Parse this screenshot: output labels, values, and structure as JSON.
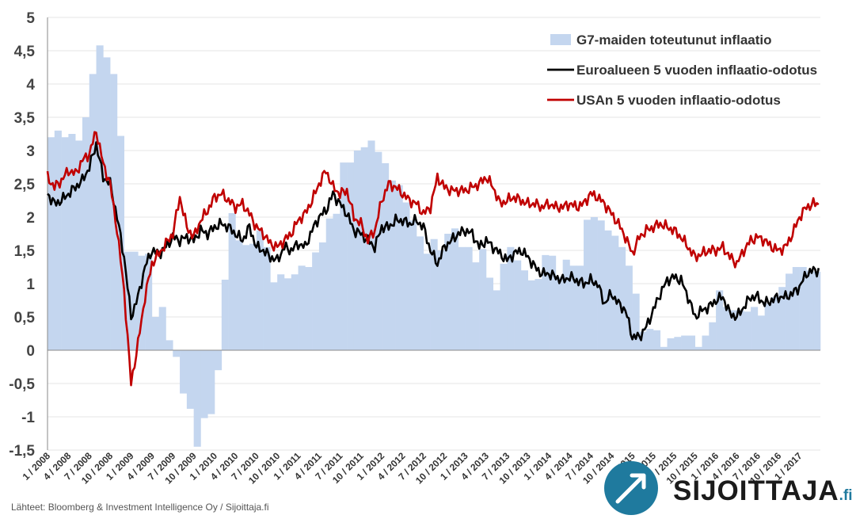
{
  "chart_data": {
    "type": "bar+line",
    "title": "",
    "xlabel": "",
    "ylabel": "",
    "ylim": [
      -1.5,
      5
    ],
    "yticks": [
      5,
      4.5,
      4,
      3.5,
      3,
      2.5,
      2,
      1.5,
      1,
      0.5,
      0,
      -0.5,
      -1,
      -1.5
    ],
    "ytick_labels": [
      "5",
      "4,5",
      "4",
      "3,5",
      "3",
      "2,5",
      "2",
      "1,5",
      "1",
      "0,5",
      "0",
      "-0,5",
      "-1",
      "-1,5"
    ],
    "xlim": [
      "2008-01",
      "2017-04"
    ],
    "xtick_labels": [
      "1 / 2008",
      "4 / 2008",
      "7 / 2008",
      "10 / 2008",
      "1 / 2009",
      "4 / 2009",
      "7 / 2009",
      "10 / 2009",
      "1 / 2010",
      "4 / 2010",
      "7 / 2010",
      "10 / 2010",
      "1 / 2011",
      "4 / 2011",
      "7 / 2011",
      "10 / 2011",
      "1 / 2012",
      "4 / 2012",
      "7 / 2012",
      "10 / 2012",
      "1 / 2013",
      "4 / 2013",
      "7 / 2013",
      "10 / 2013",
      "1 / 2014",
      "4 / 2014",
      "7 / 2014",
      "10 / 2014",
      "1 / 2015",
      "4 / 2015",
      "7 / 2015",
      "10 / 2015",
      "1 / 2016",
      "4 / 2016",
      "7 / 2016",
      "10 / 2016",
      "1 / 2017"
    ],
    "grid": true,
    "legend_position": "top-right",
    "series": [
      {
        "name": "G7-maiden toteutunut inflaatio",
        "type": "bar",
        "color": "#c4d6ef",
        "x": [
          "2008-01",
          "2008-02",
          "2008-03",
          "2008-04",
          "2008-05",
          "2008-06",
          "2008-07",
          "2008-08",
          "2008-09",
          "2008-10",
          "2008-11",
          "2008-12",
          "2009-01",
          "2009-02",
          "2009-03",
          "2009-04",
          "2009-05",
          "2009-06",
          "2009-07",
          "2009-08",
          "2009-09",
          "2009-10",
          "2009-11",
          "2009-12",
          "2010-01",
          "2010-02",
          "2010-03",
          "2010-04",
          "2010-05",
          "2010-06",
          "2010-07",
          "2010-08",
          "2010-09",
          "2010-10",
          "2010-11",
          "2010-12",
          "2011-01",
          "2011-02",
          "2011-03",
          "2011-04",
          "2011-05",
          "2011-06",
          "2011-07",
          "2011-08",
          "2011-09",
          "2011-10",
          "2011-11",
          "2011-12",
          "2012-01",
          "2012-02",
          "2012-03",
          "2012-04",
          "2012-05",
          "2012-06",
          "2012-07",
          "2012-08",
          "2012-09",
          "2012-10",
          "2012-11",
          "2012-12",
          "2013-01",
          "2013-02",
          "2013-03",
          "2013-04",
          "2013-05",
          "2013-06",
          "2013-07",
          "2013-08",
          "2013-09",
          "2013-10",
          "2013-11",
          "2013-12",
          "2014-01",
          "2014-02",
          "2014-03",
          "2014-04",
          "2014-05",
          "2014-06",
          "2014-07",
          "2014-08",
          "2014-09",
          "2014-10",
          "2014-11",
          "2014-12",
          "2015-01",
          "2015-02",
          "2015-03",
          "2015-04",
          "2015-05",
          "2015-06",
          "2015-07",
          "2015-08",
          "2015-09",
          "2015-10",
          "2015-11",
          "2015-12",
          "2016-01",
          "2016-02",
          "2016-03",
          "2016-04",
          "2016-05",
          "2016-06",
          "2016-07",
          "2016-08",
          "2016-09",
          "2016-10",
          "2016-11",
          "2016-12",
          "2017-01",
          "2017-02",
          "2017-03"
        ],
        "values": [
          3.2,
          3.3,
          3.2,
          3.25,
          3.15,
          3.5,
          4.15,
          4.58,
          4.4,
          4.15,
          3.22,
          1.48,
          1.48,
          1.42,
          1.45,
          0.5,
          0.65,
          0.15,
          -0.1,
          -0.65,
          -0.88,
          -1.45,
          -1.02,
          -0.96,
          -0.3,
          1.06,
          2.06,
          1.65,
          1.58,
          1.6,
          1.8,
          1.55,
          1.02,
          1.14,
          1.08,
          1.14,
          1.27,
          1.25,
          1.47,
          1.62,
          1.98,
          2.05,
          2.82,
          2.82,
          3.0,
          3.05,
          3.15,
          2.98,
          2.81,
          2.55,
          2.48,
          2.22,
          1.95,
          1.71,
          1.45,
          1.67,
          1.5,
          1.75,
          1.83,
          1.55,
          1.55,
          1.32,
          1.52,
          1.09,
          0.9,
          1.3,
          1.55,
          1.35,
          1.2,
          1.05,
          1.07,
          1.43,
          1.42,
          1.1,
          1.36,
          1.27,
          1.27,
          1.96,
          2.0,
          1.95,
          1.8,
          1.72,
          1.55,
          1.27,
          0.85,
          0.28,
          0.32,
          0.3,
          0.05,
          0.18,
          0.2,
          0.22,
          0.22,
          0.05,
          0.22,
          0.42,
          0.9,
          0.65,
          0.6,
          0.6,
          0.58,
          0.65,
          0.52,
          0.7,
          0.8,
          0.95,
          1.15,
          1.25,
          1.25,
          1.2,
          1.18
        ]
      },
      {
        "name": "Euroalueen 5 vuoden inflaatio-odotus",
        "type": "line",
        "color": "#000000",
        "x": [
          "2008-01",
          "2008-02",
          "2008-03",
          "2008-04",
          "2008-05",
          "2008-06",
          "2008-07",
          "2008-08",
          "2008-09",
          "2008-10",
          "2008-11",
          "2008-12",
          "2009-01",
          "2009-02",
          "2009-03",
          "2009-04",
          "2009-05",
          "2009-06",
          "2009-07",
          "2009-08",
          "2009-09",
          "2009-10",
          "2009-11",
          "2009-12",
          "2010-01",
          "2010-02",
          "2010-03",
          "2010-04",
          "2010-05",
          "2010-06",
          "2010-07",
          "2010-08",
          "2010-09",
          "2010-10",
          "2010-11",
          "2010-12",
          "2011-01",
          "2011-02",
          "2011-03",
          "2011-04",
          "2011-05",
          "2011-06",
          "2011-07",
          "2011-08",
          "2011-09",
          "2011-10",
          "2011-11",
          "2011-12",
          "2012-01",
          "2012-02",
          "2012-03",
          "2012-04",
          "2012-05",
          "2012-06",
          "2012-07",
          "2012-08",
          "2012-09",
          "2012-10",
          "2012-11",
          "2012-12",
          "2013-01",
          "2013-02",
          "2013-03",
          "2013-04",
          "2013-05",
          "2013-06",
          "2013-07",
          "2013-08",
          "2013-09",
          "2013-10",
          "2013-11",
          "2013-12",
          "2014-01",
          "2014-02",
          "2014-03",
          "2014-04",
          "2014-05",
          "2014-06",
          "2014-07",
          "2014-08",
          "2014-09",
          "2014-10",
          "2014-11",
          "2014-12",
          "2015-01",
          "2015-02",
          "2015-03",
          "2015-04",
          "2015-05",
          "2015-06",
          "2015-07",
          "2015-08",
          "2015-09",
          "2015-10",
          "2015-11",
          "2015-12",
          "2016-01",
          "2016-02",
          "2016-03",
          "2016-04",
          "2016-05",
          "2016-06",
          "2016-07",
          "2016-08",
          "2016-09",
          "2016-10",
          "2016-11",
          "2016-12",
          "2017-01",
          "2017-02",
          "2017-03"
        ],
        "values": [
          2.35,
          2.2,
          2.25,
          2.35,
          2.45,
          2.55,
          2.75,
          3.1,
          2.6,
          2.5,
          2.0,
          1.4,
          0.5,
          0.8,
          1.25,
          1.5,
          1.45,
          1.55,
          1.7,
          1.65,
          1.7,
          1.65,
          1.8,
          1.75,
          1.85,
          1.9,
          1.85,
          1.75,
          1.65,
          1.85,
          1.55,
          1.5,
          1.4,
          1.35,
          1.55,
          1.5,
          1.6,
          1.55,
          1.8,
          2.0,
          2.1,
          2.35,
          2.2,
          2.05,
          1.8,
          1.75,
          1.65,
          1.55,
          1.85,
          1.85,
          1.95,
          1.95,
          1.9,
          1.95,
          1.85,
          1.5,
          1.3,
          1.55,
          1.65,
          1.75,
          1.8,
          1.75,
          1.55,
          1.65,
          1.55,
          1.45,
          1.35,
          1.45,
          1.5,
          1.4,
          1.25,
          1.15,
          1.15,
          1.1,
          1.05,
          1.1,
          1.05,
          1.0,
          1.05,
          1.0,
          0.7,
          0.85,
          0.7,
          0.6,
          0.2,
          0.2,
          0.35,
          0.6,
          0.85,
          1.05,
          1.1,
          1.05,
          0.8,
          0.5,
          0.6,
          0.65,
          0.75,
          0.8,
          0.55,
          0.5,
          0.65,
          0.8,
          0.8,
          0.7,
          0.75,
          0.8,
          0.8,
          0.85,
          0.95,
          1.15,
          1.2
        ]
      },
      {
        "name": "USAn 5 vuoden inflaatio-odotus",
        "type": "line",
        "color": "#c00000",
        "x": [
          "2008-01",
          "2008-02",
          "2008-03",
          "2008-04",
          "2008-05",
          "2008-06",
          "2008-07",
          "2008-08",
          "2008-09",
          "2008-10",
          "2008-11",
          "2008-12",
          "2009-01",
          "2009-02",
          "2009-03",
          "2009-04",
          "2009-05",
          "2009-06",
          "2009-07",
          "2009-08",
          "2009-09",
          "2009-10",
          "2009-11",
          "2009-12",
          "2010-01",
          "2010-02",
          "2010-03",
          "2010-04",
          "2010-05",
          "2010-06",
          "2010-07",
          "2010-08",
          "2010-09",
          "2010-10",
          "2010-11",
          "2010-12",
          "2011-01",
          "2011-02",
          "2011-03",
          "2011-04",
          "2011-05",
          "2011-06",
          "2011-07",
          "2011-08",
          "2011-09",
          "2011-10",
          "2011-11",
          "2011-12",
          "2012-01",
          "2012-02",
          "2012-03",
          "2012-04",
          "2012-05",
          "2012-06",
          "2012-07",
          "2012-08",
          "2012-09",
          "2012-10",
          "2012-11",
          "2012-12",
          "2013-01",
          "2013-02",
          "2013-03",
          "2013-04",
          "2013-05",
          "2013-06",
          "2013-07",
          "2013-08",
          "2013-09",
          "2013-10",
          "2013-11",
          "2013-12",
          "2014-01",
          "2014-02",
          "2014-03",
          "2014-04",
          "2014-05",
          "2014-06",
          "2014-07",
          "2014-08",
          "2014-09",
          "2014-10",
          "2014-11",
          "2014-12",
          "2015-01",
          "2015-02",
          "2015-03",
          "2015-04",
          "2015-05",
          "2015-06",
          "2015-07",
          "2015-08",
          "2015-09",
          "2015-10",
          "2015-11",
          "2015-12",
          "2016-01",
          "2016-02",
          "2016-03",
          "2016-04",
          "2016-05",
          "2016-06",
          "2016-07",
          "2016-08",
          "2016-09",
          "2016-10",
          "2016-11",
          "2016-12",
          "2017-01",
          "2017-02",
          "2017-03"
        ],
        "values": [
          2.6,
          2.45,
          2.55,
          2.7,
          2.65,
          2.85,
          2.95,
          3.3,
          2.8,
          2.5,
          1.8,
          0.9,
          -0.5,
          0.1,
          0.8,
          1.3,
          1.45,
          1.6,
          1.75,
          2.3,
          1.85,
          1.7,
          1.95,
          2.1,
          2.3,
          2.35,
          2.25,
          2.15,
          2.2,
          2.05,
          1.85,
          1.75,
          1.6,
          1.55,
          1.65,
          1.75,
          1.95,
          2.05,
          2.25,
          2.5,
          2.7,
          2.45,
          2.35,
          2.4,
          2.0,
          1.9,
          1.65,
          1.8,
          2.25,
          2.5,
          2.45,
          2.35,
          2.25,
          2.2,
          2.05,
          2.15,
          2.6,
          2.45,
          2.4,
          2.4,
          2.4,
          2.45,
          2.5,
          2.6,
          2.45,
          2.2,
          2.25,
          2.3,
          2.25,
          2.2,
          2.2,
          2.15,
          2.2,
          2.15,
          2.15,
          2.2,
          2.15,
          2.2,
          2.35,
          2.3,
          2.2,
          2.05,
          1.9,
          1.7,
          1.45,
          1.7,
          1.8,
          1.85,
          1.9,
          1.85,
          1.8,
          1.7,
          1.55,
          1.4,
          1.45,
          1.5,
          1.5,
          1.55,
          1.4,
          1.3,
          1.5,
          1.65,
          1.7,
          1.65,
          1.55,
          1.5,
          1.55,
          1.75,
          2.0,
          2.15,
          2.2
        ]
      }
    ]
  },
  "source_text": "Lähteet: Bloomberg & Investment Intelligence Oy  / Sijoittaja.fi",
  "logo": {
    "name": "SIJOITTAJA",
    "tld": ".fi",
    "badge_color": "#1f7a9e"
  }
}
